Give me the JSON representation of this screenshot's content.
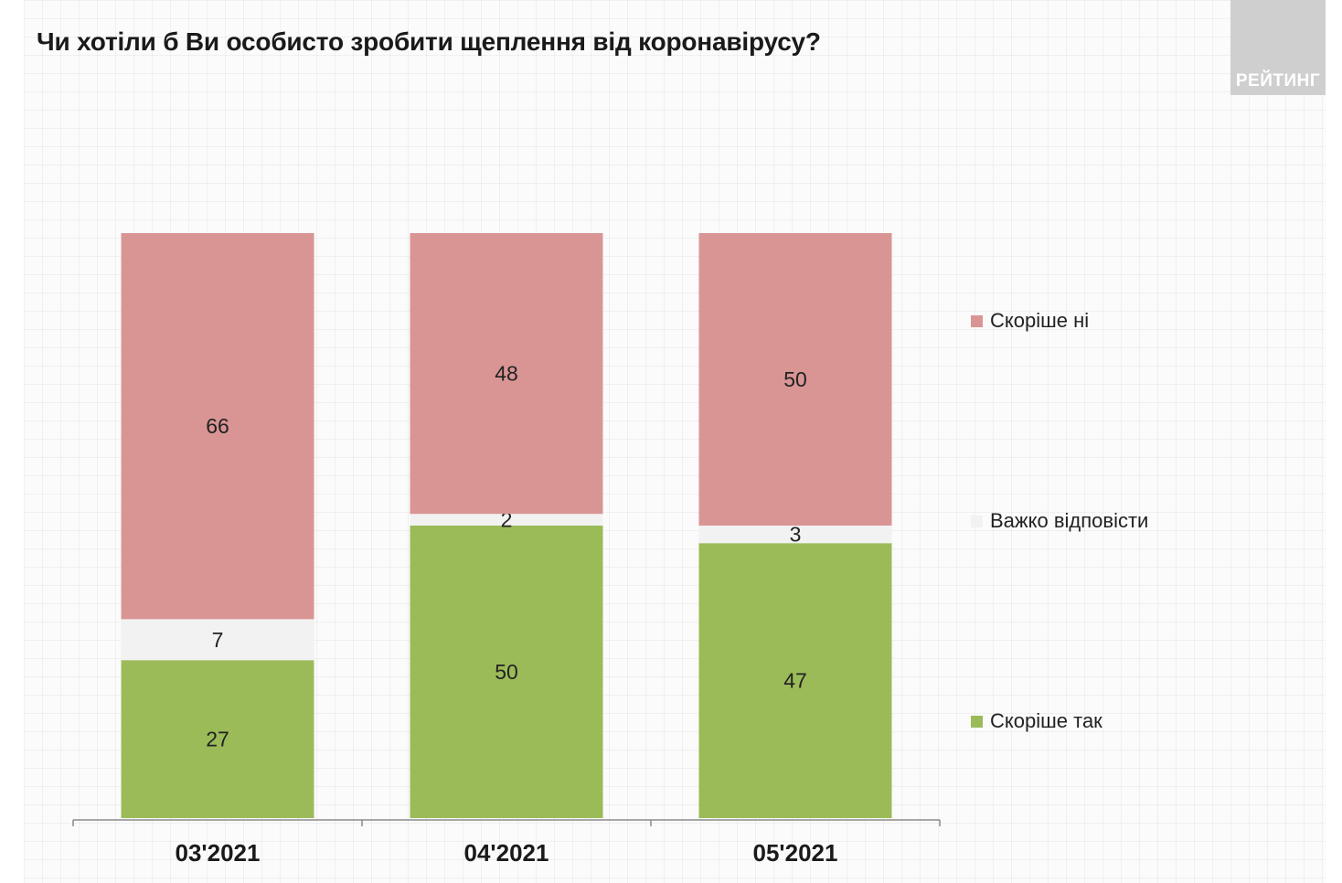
{
  "title": "Чи хотіли б Ви особисто зробити щеплення від коронавірусу?",
  "logo": {
    "text": "РЕЙТИНГ"
  },
  "chart_data": {
    "type": "bar",
    "stacked": true,
    "title": "Чи хотіли б Ви особисто зробити щеплення від коронавірусу?",
    "categories": [
      "03'2021",
      "04'2021",
      "05'2021"
    ],
    "series": [
      {
        "name": "Скоріше так",
        "values": [
          27,
          50,
          47
        ],
        "color": "#9bbb59"
      },
      {
        "name": "Важко відповісти",
        "values": [
          7,
          2,
          3
        ],
        "color": "#f2f2f2"
      },
      {
        "name": "Скоріше ні",
        "values": [
          66,
          48,
          50
        ],
        "color": "#d99594"
      }
    ],
    "ylim": [
      0,
      100
    ],
    "grid": false,
    "legend_position": "right",
    "xlabel": "",
    "ylabel": ""
  }
}
